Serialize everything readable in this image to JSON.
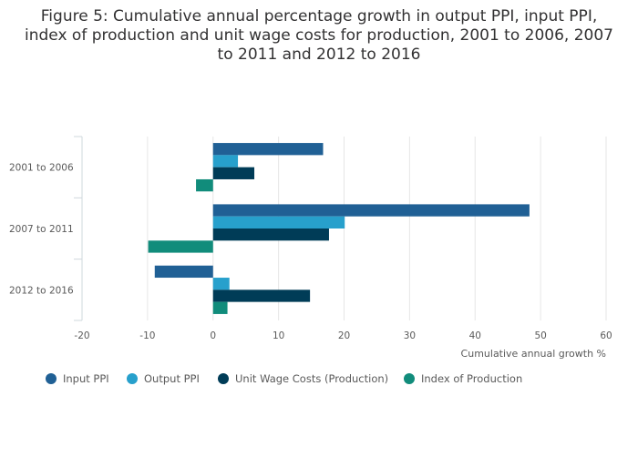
{
  "chart_data": {
    "type": "bar",
    "orientation": "horizontal",
    "title": "Figure 5: Cumulative annual percentage growth in output PPI, input PPI, index of production and unit wage costs for production, 2001 to 2006, 2007 to 2011 and 2012 to 2016",
    "title_lines": [
      "Figure 5: Cumulative annual percentage growth in output PPI, input PPI,",
      "index of production and unit wage costs for production, 2001 to 2006, 2007",
      "to 2011 and 2012 to 2016"
    ],
    "categories": [
      "2001 to 2006",
      "2007 to 2011",
      "2012 to 2016"
    ],
    "series": [
      {
        "name": "Input PPI",
        "color": "#206095",
        "values": [
          16.8,
          48.3,
          -8.9
        ]
      },
      {
        "name": "Output PPI",
        "color": "#27a0cc",
        "values": [
          3.8,
          20.1,
          2.5
        ]
      },
      {
        "name": "Unit Wage Costs (Production)",
        "color": "#003c57",
        "values": [
          6.3,
          17.7,
          14.8
        ]
      },
      {
        "name": "Index of Production",
        "color": "#118c7b",
        "values": [
          -2.6,
          -9.9,
          2.2
        ]
      }
    ],
    "xlabel": "Cumulative annual growth %",
    "ylabel": "",
    "xlim": [
      -20,
      60
    ],
    "xticks": [
      -20,
      -10,
      0,
      10,
      20,
      30,
      40,
      50,
      60
    ],
    "grid": true,
    "legend_position": "bottom"
  }
}
